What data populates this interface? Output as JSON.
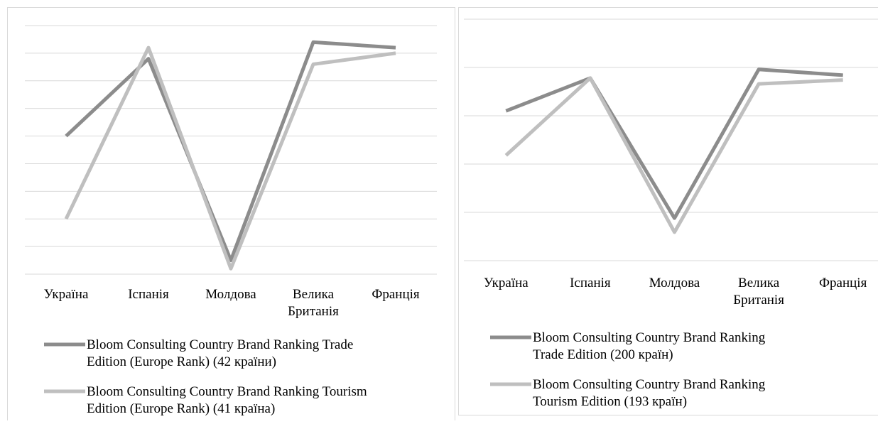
{
  "chart_data": [
    {
      "type": "line",
      "categories": [
        "Україна",
        "Іспанія",
        "Молдова",
        "Велика Британія",
        "Франція"
      ],
      "series": [
        {
          "name": "Bloom Consulting Country Brand Ranking Trade Edition (Europe Rank) (42 країни)",
          "color": "#8c8c8c",
          "values": [
            5.0,
            7.8,
            0.5,
            8.4,
            8.2
          ]
        },
        {
          "name": "Bloom Consulting Country Brand Ranking Tourism Edition (Europe Rank) (41 країна)",
          "color": "#bfbfbf",
          "values": [
            2.0,
            8.2,
            0.2,
            7.6,
            8.0
          ]
        }
      ],
      "ylim": [
        0,
        9
      ],
      "yticks": [
        0,
        1,
        2,
        3,
        4,
        5,
        6,
        7,
        8,
        9
      ],
      "grid": true
    },
    {
      "type": "line",
      "categories": [
        "Україна",
        "Іспанія",
        "Молдова",
        "Велика Британія",
        "Франція"
      ],
      "series": [
        {
          "name": "Bloom Consulting Country Brand Ranking Trade Edition (200 країн)",
          "color": "#8c8c8c",
          "values": [
            3.1,
            3.78,
            0.88,
            3.96,
            3.84
          ]
        },
        {
          "name": "Bloom Consulting Country Brand Ranking Tourism Edition (193 країн)",
          "color": "#bfbfbf",
          "values": [
            2.18,
            3.78,
            0.59,
            3.66,
            3.74
          ]
        }
      ],
      "ylim": [
        0,
        5
      ],
      "yticks": [
        0,
        1,
        2,
        3,
        4,
        5
      ],
      "grid": true
    }
  ]
}
